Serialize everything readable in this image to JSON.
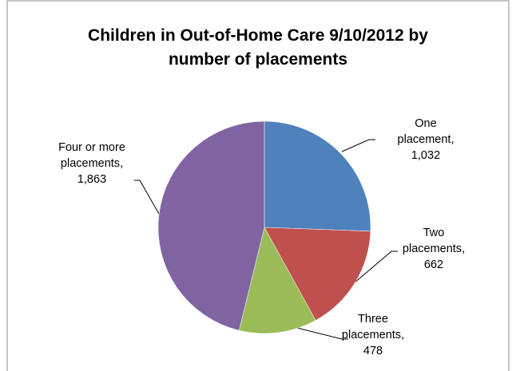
{
  "chart_data": {
    "type": "pie",
    "title": "Children in Out-of-Home Care 9/10/2012 by number of placements",
    "categories": [
      "One placement",
      "Two placements",
      "Three placements",
      "Four or more placements"
    ],
    "values": [
      1032,
      662,
      478,
      1863
    ],
    "value_labels": [
      "1,032",
      "662",
      "478",
      "1,863"
    ],
    "label_separator": ",",
    "colors": [
      "#4f81bd",
      "#c0504d",
      "#9bbb59",
      "#8064a2"
    ]
  }
}
